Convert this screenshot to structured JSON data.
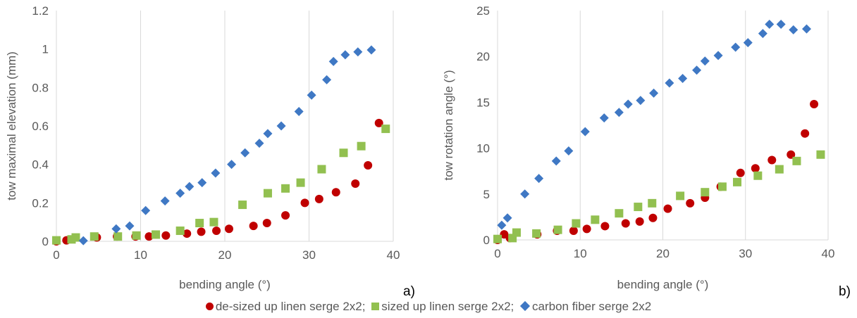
{
  "chart_data": [
    {
      "type": "scatter",
      "panel_label": "a)",
      "xlabel": "bending angle (°)",
      "ylabel": "tow maximal elevation (mm)",
      "xlim": [
        0,
        40
      ],
      "ylim": [
        0,
        1.2
      ],
      "xticks": [
        "0",
        "10",
        "20",
        "30",
        "40"
      ],
      "yticks": [
        "0",
        "0.2",
        "0.4",
        "0.6",
        "0.8",
        "1",
        "1.2"
      ],
      "grid": "vertical",
      "series": [
        {
          "name": "de-sized up linen serge 2x2",
          "marker": "circle",
          "color": "#c00000",
          "points": [
            [
              0,
              0
            ],
            [
              1.2,
              0.005
            ],
            [
              4.8,
              0.02
            ],
            [
              7.2,
              0.025
            ],
            [
              9.4,
              0.025
            ],
            [
              11,
              0.025
            ],
            [
              13,
              0.03
            ],
            [
              15.5,
              0.04
            ],
            [
              17.2,
              0.05
            ],
            [
              19,
              0.055
            ],
            [
              20.5,
              0.065
            ],
            [
              23.4,
              0.08
            ],
            [
              25,
              0.095
            ],
            [
              27.2,
              0.135
            ],
            [
              29.5,
              0.2
            ],
            [
              31.2,
              0.22
            ],
            [
              33.2,
              0.255
            ],
            [
              35.5,
              0.3
            ],
            [
              37,
              0.395
            ],
            [
              38.3,
              0.615
            ]
          ]
        },
        {
          "name": "sized up linen serge 2x2",
          "marker": "square",
          "color": "#92c050",
          "points": [
            [
              0,
              0.005
            ],
            [
              1.8,
              0.01
            ],
            [
              2.3,
              0.02
            ],
            [
              4.5,
              0.025
            ],
            [
              7.3,
              0.025
            ],
            [
              9.5,
              0.03
            ],
            [
              11.8,
              0.035
            ],
            [
              14.7,
              0.055
            ],
            [
              17,
              0.095
            ],
            [
              18.7,
              0.1
            ],
            [
              22.1,
              0.19
            ],
            [
              25.1,
              0.25
            ],
            [
              27.2,
              0.275
            ],
            [
              29,
              0.305
            ],
            [
              31.5,
              0.375
            ],
            [
              34.1,
              0.46
            ],
            [
              36.2,
              0.495
            ],
            [
              39.1,
              0.585
            ]
          ]
        },
        {
          "name": "carbon fiber serge 2x2",
          "marker": "diamond",
          "color": "#3f78c4",
          "points": [
            [
              3.2,
              0.003
            ],
            [
              7.1,
              0.065
            ],
            [
              8.7,
              0.08
            ],
            [
              10.6,
              0.16
            ],
            [
              12.9,
              0.21
            ],
            [
              14.7,
              0.25
            ],
            [
              15.8,
              0.285
            ],
            [
              17.3,
              0.305
            ],
            [
              18.9,
              0.355
            ],
            [
              20.8,
              0.4
            ],
            [
              22.4,
              0.46
            ],
            [
              24.1,
              0.51
            ],
            [
              25.1,
              0.56
            ],
            [
              26.7,
              0.6
            ],
            [
              28.8,
              0.675
            ],
            [
              30.3,
              0.76
            ],
            [
              32.1,
              0.84
            ],
            [
              32.9,
              0.935
            ],
            [
              34.3,
              0.97
            ],
            [
              35.8,
              0.985
            ],
            [
              37.4,
              0.995
            ]
          ]
        }
      ]
    },
    {
      "type": "scatter",
      "panel_label": "b)",
      "xlabel": "bending angle (°)",
      "ylabel": "tow rotation angle (°)",
      "xlim": [
        0,
        40
      ],
      "ylim": [
        0,
        25
      ],
      "xticks": [
        "0",
        "10",
        "20",
        "30",
        "40"
      ],
      "yticks": [
        "0",
        "5",
        "10",
        "15",
        "20",
        "25"
      ],
      "grid": "vertical",
      "series": [
        {
          "name": "de-sized up linen serge 2x2",
          "marker": "circle",
          "color": "#c00000",
          "points": [
            [
              0,
              0
            ],
            [
              0.8,
              0.6
            ],
            [
              1.5,
              0.2
            ],
            [
              4.8,
              0.6
            ],
            [
              7.2,
              1.0
            ],
            [
              9.2,
              1.0
            ],
            [
              10.8,
              1.2
            ],
            [
              13,
              1.5
            ],
            [
              15.5,
              1.8
            ],
            [
              17.2,
              2.0
            ],
            [
              18.8,
              2.4
            ],
            [
              20.6,
              3.4
            ],
            [
              23.3,
              4.0
            ],
            [
              25.1,
              4.6
            ],
            [
              27,
              5.8
            ],
            [
              29.4,
              7.3
            ],
            [
              31.2,
              7.8
            ],
            [
              33.2,
              8.7
            ],
            [
              35.5,
              9.3
            ],
            [
              37.2,
              11.6
            ],
            [
              38.3,
              14.8
            ]
          ]
        },
        {
          "name": "sized up linen serge 2x2",
          "marker": "square",
          "color": "#92c050",
          "points": [
            [
              0,
              0.1
            ],
            [
              1.8,
              0.2
            ],
            [
              2.3,
              0.8
            ],
            [
              4.7,
              0.7
            ],
            [
              7.3,
              1.1
            ],
            [
              9.5,
              1.8
            ],
            [
              11.8,
              2.2
            ],
            [
              14.7,
              2.9
            ],
            [
              17,
              3.6
            ],
            [
              18.7,
              4.0
            ],
            [
              22.1,
              4.8
            ],
            [
              25.1,
              5.2
            ],
            [
              27.2,
              5.8
            ],
            [
              29,
              6.3
            ],
            [
              31.5,
              7.0
            ],
            [
              34.1,
              7.7
            ],
            [
              36.2,
              8.6
            ],
            [
              39.1,
              9.3
            ]
          ]
        },
        {
          "name": "carbon fiber serge 2x2",
          "marker": "diamond",
          "color": "#3f78c4",
          "points": [
            [
              0.5,
              1.6
            ],
            [
              1.2,
              2.4
            ],
            [
              3.3,
              5.0
            ],
            [
              5,
              6.7
            ],
            [
              7.1,
              8.6
            ],
            [
              8.6,
              9.7
            ],
            [
              10.6,
              11.8
            ],
            [
              12.9,
              13.3
            ],
            [
              14.7,
              13.9
            ],
            [
              15.8,
              14.8
            ],
            [
              17.3,
              15.2
            ],
            [
              18.9,
              16.0
            ],
            [
              20.8,
              17.1
            ],
            [
              22.4,
              17.6
            ],
            [
              24.1,
              18.5
            ],
            [
              25.1,
              19.5
            ],
            [
              26.7,
              20.1
            ],
            [
              28.8,
              21.0
            ],
            [
              30.3,
              21.5
            ],
            [
              32.1,
              22.5
            ],
            [
              32.9,
              23.5
            ],
            [
              34.3,
              23.5
            ],
            [
              35.8,
              22.9
            ],
            [
              37.4,
              23.0
            ]
          ]
        }
      ]
    }
  ],
  "legend": {
    "entries": [
      {
        "label": "de-sized up linen serge 2x2;",
        "color": "#c00000",
        "marker": "circle"
      },
      {
        "label": "sized up linen serge 2x2;",
        "color": "#92c050",
        "marker": "square"
      },
      {
        "label": "carbon fiber serge 2x2",
        "color": "#3f78c4",
        "marker": "diamond"
      }
    ]
  },
  "colors": {
    "axis": "#d9d9d9",
    "grid": "#d9d9d9",
    "text": "#595959"
  }
}
